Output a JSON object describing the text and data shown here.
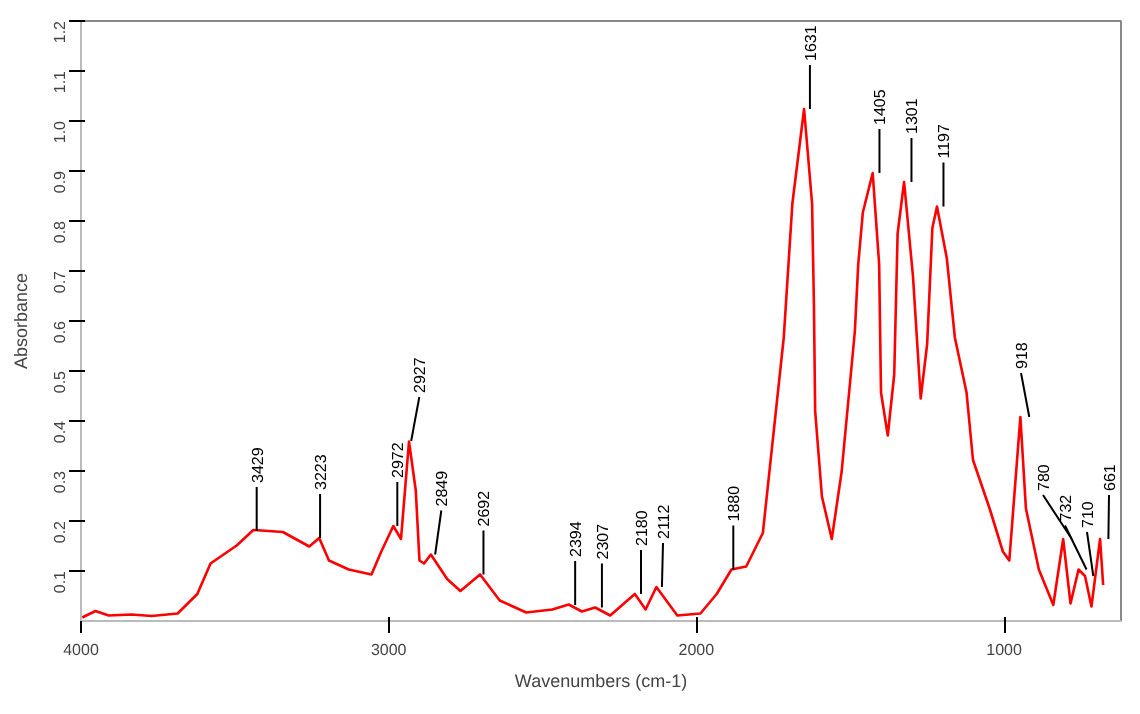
{
  "chart_data": {
    "type": "line",
    "xlabel": "Wavenumbers (cm-1)",
    "ylabel": "Absorbance",
    "xlim": [
      4000,
      620
    ],
    "xticks": [
      4000,
      3000,
      2000,
      1000
    ],
    "ylim": [
      0,
      1.2
    ],
    "yticks": [
      0.1,
      0.2,
      0.3,
      0.4,
      0.5,
      0.6,
      0.7,
      0.8,
      0.9,
      {
        "value": 1.0,
        "label": "1.0"
      },
      1.1,
      1.2
    ],
    "grid": false,
    "marker": "none",
    "line_style": "solid",
    "series": [
      {
        "color": "#ff0000",
        "x": [
          3996,
          3953,
          3910,
          3835,
          3771,
          3686,
          3622,
          3579,
          3494,
          3440,
          3344,
          3258,
          3226,
          3194,
          3130,
          3056,
          3024,
          2985,
          2960,
          2934,
          2912,
          2900,
          2885,
          2863,
          2810,
          2767,
          2703,
          2639,
          2553,
          2468,
          2415,
          2372,
          2329,
          2280,
          2200,
          2165,
          2130,
          2062,
          1987,
          1934,
          1886,
          1838,
          1784,
          1716,
          1688,
          1650,
          1624,
          1618,
          1614,
          1592,
          1560,
          1528,
          1485,
          1474,
          1459,
          1427,
          1406,
          1400,
          1378,
          1357,
          1346,
          1325,
          1296,
          1271,
          1250,
          1233,
          1218,
          1186,
          1160,
          1122,
          1101,
          1047,
          1004,
          983,
          947,
          929,
          887,
          840,
          808,
          784,
          758,
          737,
          716,
          688,
          678
        ],
        "values": [
          0.007,
          0.02,
          0.011,
          0.013,
          0.01,
          0.015,
          0.054,
          0.115,
          0.151,
          0.182,
          0.178,
          0.149,
          0.166,
          0.121,
          0.103,
          0.093,
          0.139,
          0.19,
          0.164,
          0.359,
          0.261,
          0.121,
          0.115,
          0.133,
          0.084,
          0.06,
          0.093,
          0.041,
          0.017,
          0.023,
          0.033,
          0.019,
          0.027,
          0.011,
          0.054,
          0.023,
          0.068,
          0.011,
          0.015,
          0.054,
          0.103,
          0.109,
          0.176,
          0.567,
          0.835,
          1.024,
          0.835,
          0.634,
          0.42,
          0.249,
          0.164,
          0.298,
          0.579,
          0.713,
          0.817,
          0.896,
          0.713,
          0.457,
          0.371,
          0.493,
          0.775,
          0.878,
          0.689,
          0.445,
          0.554,
          0.786,
          0.829,
          0.725,
          0.567,
          0.457,
          0.322,
          0.225,
          0.139,
          0.121,
          0.408,
          0.225,
          0.103,
          0.032,
          0.164,
          0.035,
          0.103,
          0.09,
          0.029,
          0.164,
          0.072
        ]
      }
    ],
    "annotations": [
      {
        "text": "3429",
        "x": 3429,
        "y": 0.18
      },
      {
        "text": "3223",
        "x": 3223,
        "y": 0.166
      },
      {
        "text": "2972",
        "x": 2972,
        "y": 0.19
      },
      {
        "text": "2927",
        "x": 2927,
        "y": 0.36
      },
      {
        "text": "2849",
        "x": 2849,
        "y": 0.133
      },
      {
        "text": "2692",
        "x": 2692,
        "y": 0.093
      },
      {
        "text": "2394",
        "x": 2394,
        "y": 0.032
      },
      {
        "text": "2307",
        "x": 2307,
        "y": 0.027
      },
      {
        "text": "2180",
        "x": 2180,
        "y": 0.054
      },
      {
        "text": "2112",
        "x": 2112,
        "y": 0.068
      },
      {
        "text": "1880",
        "x": 1880,
        "y": 0.103
      },
      {
        "text": "1631",
        "x": 1631,
        "y": 1.024
      },
      {
        "text": "1405",
        "x": 1405,
        "y": 0.896
      },
      {
        "text": "1301",
        "x": 1301,
        "y": 0.878
      },
      {
        "text": "1197",
        "x": 1197,
        "y": 0.829
      },
      {
        "text": "918",
        "x": 918,
        "y": 0.408
      },
      {
        "text": "780",
        "x": 780,
        "y": 0.164
      },
      {
        "text": "732",
        "x": 732,
        "y": 0.103
      },
      {
        "text": "710",
        "x": 710,
        "y": 0.09
      },
      {
        "text": "661",
        "x": 661,
        "y": 0.164
      }
    ]
  }
}
